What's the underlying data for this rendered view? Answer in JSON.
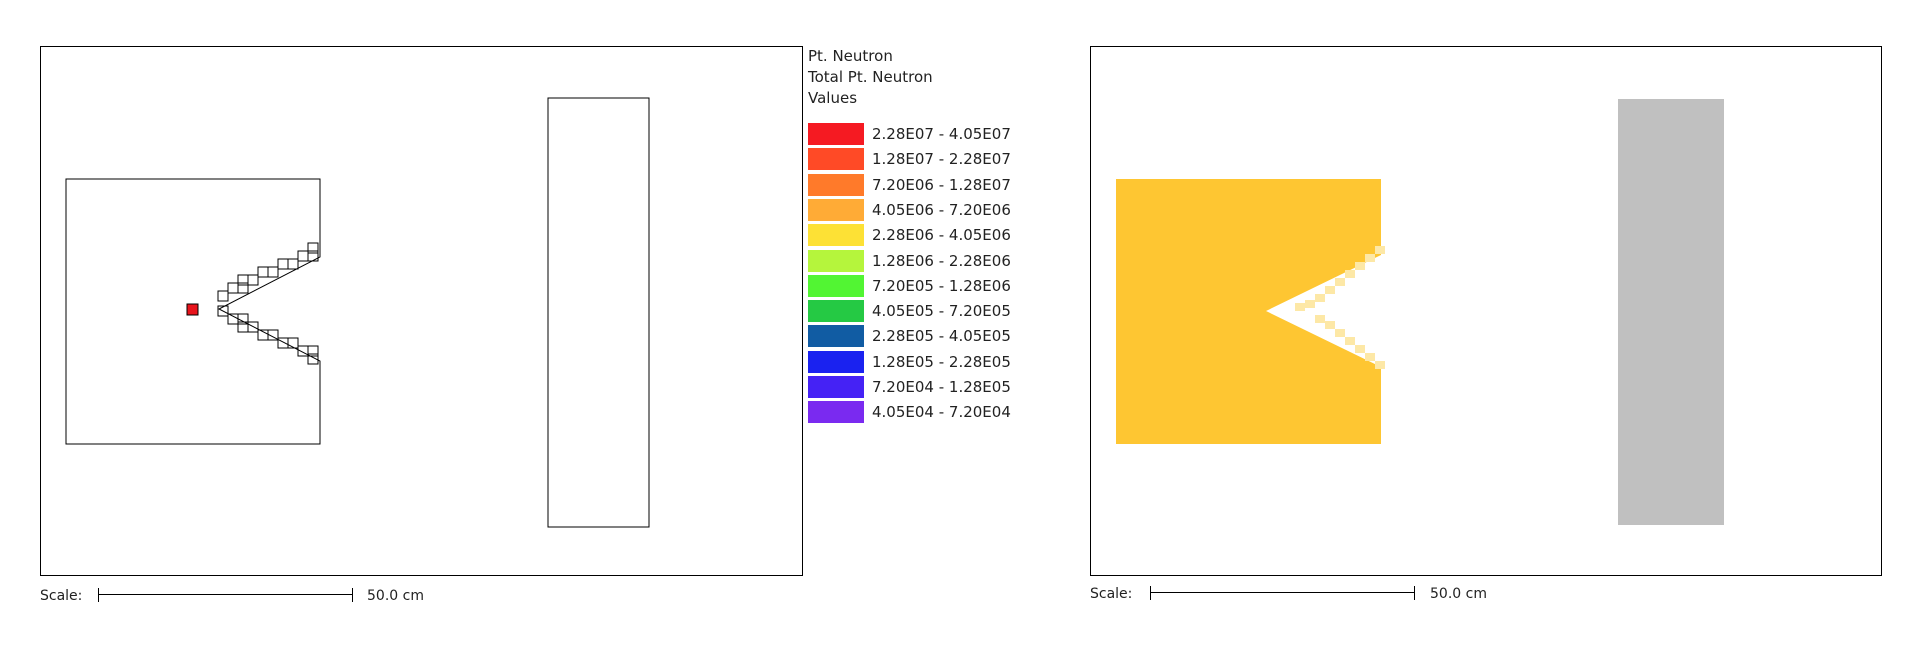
{
  "legend": {
    "title_lines": [
      "Pt. Neutron",
      "Total Pt. Neutron",
      "Values"
    ],
    "items": [
      {
        "label": "2.28E07 - 4.05E07",
        "color": "#f51a22"
      },
      {
        "label": "1.28E07 - 2.28E07",
        "color": "#ff4a26"
      },
      {
        "label": "7.20E06 - 1.28E07",
        "color": "#ff7a2a"
      },
      {
        "label": "4.05E06 - 7.20E06",
        "color": "#ffab36"
      },
      {
        "label": "2.28E06 - 4.05E06",
        "color": "#fde135"
      },
      {
        "label": "1.28E06 - 2.28E06",
        "color": "#b5f53c"
      },
      {
        "label": "7.20E05 - 1.28E06",
        "color": "#52f533"
      },
      {
        "label": "4.05E05 - 7.20E05",
        "color": "#25c944"
      },
      {
        "label": "2.28E05 - 4.05E05",
        "color": "#115ca3"
      },
      {
        "label": "1.28E05 - 2.28E05",
        "color": "#1a22f0"
      },
      {
        "label": "7.20E04 - 1.28E05",
        "color": "#4522f5"
      },
      {
        "label": "4.05E04 - 7.20E04",
        "color": "#7a2af0"
      }
    ]
  },
  "scale_left": {
    "label": "Scale:",
    "value": "50.0 cm"
  },
  "scale_right": {
    "label": "Scale:",
    "value": "50.0 cm"
  },
  "colors": {
    "outline": "#000000",
    "source_cell": "#e8141c",
    "fill": "#fec632",
    "fill_light": "#fde8a6",
    "wall": "#c0c0c0"
  }
}
